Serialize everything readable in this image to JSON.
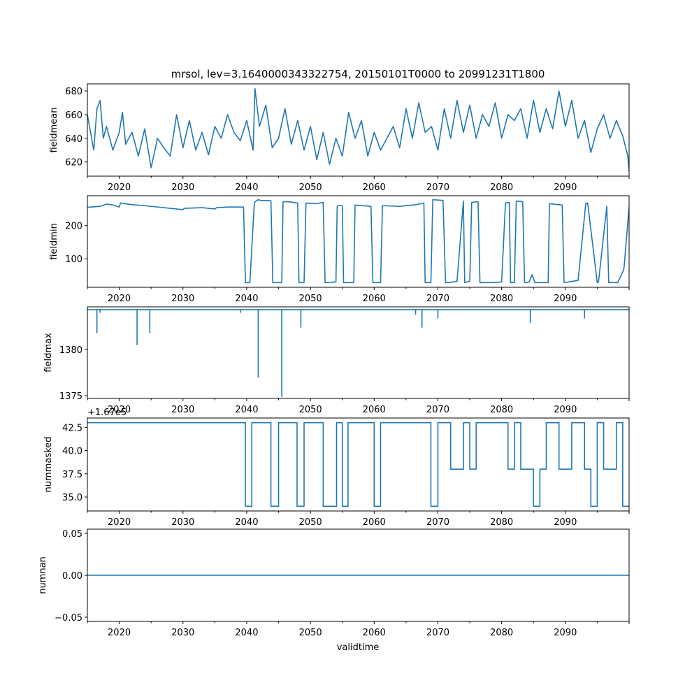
{
  "chart_data": [
    {
      "type": "line",
      "name": "fieldmean",
      "title": "mrsol, lev=3.1640000343322754, 20150101T0000 to 20991231T1800",
      "xlabel": "",
      "ylabel": "fieldmean",
      "xlim": [
        2015,
        2100
      ],
      "ylim": [
        608,
        686
      ],
      "yticks": [
        620,
        640,
        660,
        680
      ],
      "ytick_labels": [
        "620",
        "640",
        "660",
        "680"
      ],
      "xticks": [
        2020,
        2030,
        2040,
        2050,
        2060,
        2070,
        2080,
        2090
      ],
      "xtick_labels": [
        "2020",
        "2030",
        "2040",
        "2050",
        "2060",
        "2070",
        "2080",
        "2090"
      ],
      "x": [
        2015,
        2016,
        2016.5,
        2017,
        2017.5,
        2018,
        2019,
        2020,
        2020.5,
        2021,
        2022,
        2023,
        2024,
        2025,
        2026,
        2027,
        2028,
        2029,
        2030,
        2031,
        2032,
        2033,
        2034,
        2035,
        2036,
        2037,
        2038,
        2039,
        2040,
        2041,
        2041.3,
        2042,
        2043,
        2044,
        2045,
        2046,
        2047,
        2048,
        2049,
        2050,
        2051,
        2052,
        2053,
        2054,
        2055,
        2056,
        2057,
        2058,
        2059,
        2060,
        2061,
        2062,
        2063,
        2064,
        2065,
        2066,
        2067,
        2068,
        2069,
        2070,
        2071,
        2072,
        2073,
        2074,
        2075,
        2076,
        2077,
        2078,
        2079,
        2080,
        2081,
        2082,
        2083,
        2084,
        2085,
        2086,
        2087,
        2088,
        2089,
        2090,
        2091,
        2092,
        2093,
        2094,
        2095,
        2096,
        2097,
        2098,
        2099,
        2099.8,
        2100
      ],
      "values": [
        660,
        630,
        665,
        672,
        640,
        650,
        630,
        645,
        662,
        635,
        645,
        625,
        648,
        615,
        640,
        632,
        625,
        660,
        632,
        655,
        630,
        645,
        626,
        650,
        640,
        660,
        645,
        638,
        655,
        630,
        682,
        650,
        668,
        632,
        640,
        665,
        635,
        655,
        630,
        650,
        622,
        645,
        618,
        640,
        625,
        662,
        640,
        655,
        625,
        645,
        630,
        640,
        650,
        632,
        665,
        640,
        670,
        645,
        650,
        630,
        665,
        640,
        672,
        645,
        668,
        640,
        660,
        650,
        670,
        640,
        660,
        655,
        665,
        640,
        672,
        645,
        665,
        648,
        680,
        650,
        672,
        640,
        655,
        628,
        648,
        660,
        640,
        655,
        642,
        625,
        612
      ]
    },
    {
      "type": "line",
      "name": "fieldmin",
      "xlabel": "",
      "ylabel": "fieldmin",
      "xlim": [
        2015,
        2100
      ],
      "ylim": [
        14,
        290
      ],
      "yticks": [
        100,
        200
      ],
      "ytick_labels": [
        "100",
        "200"
      ],
      "xticks": [
        2020,
        2030,
        2040,
        2050,
        2060,
        2070,
        2080,
        2090
      ],
      "xtick_labels": [
        "2020",
        "2030",
        "2040",
        "2050",
        "2060",
        "2070",
        "2080",
        "2090"
      ],
      "x": [
        2015,
        2017,
        2018,
        2019,
        2020,
        2020.2,
        2022,
        2024,
        2026,
        2028,
        2030,
        2030.2,
        2033,
        2035,
        2035.3,
        2037,
        2039.5,
        2039.8,
        2040.5,
        2041.2,
        2041.8,
        2042.2,
        2043.8,
        2044.1,
        2044.3,
        2045.5,
        2045.7,
        2046.5,
        2048,
        2048.2,
        2049,
        2049.3,
        2051,
        2052,
        2052.3,
        2054,
        2054.2,
        2055,
        2055.2,
        2056.8,
        2057,
        2059.5,
        2059.8,
        2061,
        2061.3,
        2064,
        2066,
        2066.3,
        2067.8,
        2068,
        2068.9,
        2069.2,
        2070.8,
        2071.2,
        2071.6,
        2073,
        2074,
        2074.2,
        2075,
        2075.3,
        2076.3,
        2076.6,
        2078,
        2080,
        2080.6,
        2081.2,
        2081.4,
        2082,
        2082.3,
        2083.3,
        2083.6,
        2084.3,
        2084.8,
        2085.2,
        2087.3,
        2087.5,
        2089.5,
        2089.8,
        2092,
        2093.2,
        2093.5,
        2095,
        2095.2,
        2096.5,
        2096.8,
        2098,
        2098.2,
        2099,
        2099.2,
        2100
      ],
      "values": [
        255,
        258,
        265,
        262,
        256,
        268,
        263,
        260,
        256,
        252,
        248,
        252,
        254,
        250,
        254,
        256,
        256,
        28,
        28,
        270,
        278,
        276,
        275,
        28,
        28,
        28,
        272,
        272,
        268,
        28,
        28,
        268,
        266,
        270,
        28,
        30,
        260,
        260,
        28,
        28,
        262,
        258,
        28,
        28,
        260,
        258,
        262,
        262,
        268,
        28,
        28,
        278,
        276,
        28,
        28,
        32,
        274,
        28,
        32,
        270,
        272,
        28,
        28,
        30,
        268,
        270,
        28,
        28,
        274,
        272,
        28,
        30,
        52,
        28,
        28,
        266,
        262,
        28,
        35,
        266,
        268,
        28,
        30,
        258,
        28,
        28,
        28,
        60,
        72,
        256
      ]
    },
    {
      "type": "line",
      "name": "fieldmax",
      "xlabel": "",
      "ylabel": "fieldmax",
      "xlim": [
        2015,
        2100
      ],
      "ylim": [
        1374.7,
        1384.6
      ],
      "yticks": [
        1375,
        1380
      ],
      "ytick_labels": [
        "1375",
        "1380"
      ],
      "xticks": [
        2020,
        2030,
        2040,
        2050,
        2060,
        2070,
        2080,
        2090
      ],
      "xtick_labels": [
        "2020",
        "2030",
        "2040",
        "2050",
        "2060",
        "2070",
        "2080",
        "2090"
      ],
      "x": [
        2015,
        2016.5,
        2016.5,
        2016.5,
        2017,
        2017,
        2017,
        2022.8,
        2022.8,
        2022.8,
        2024.8,
        2024.8,
        2024.8,
        2039,
        2039,
        2039,
        2041.8,
        2041.8,
        2041.8,
        2045.5,
        2045.5,
        2045.5,
        2048.5,
        2048.5,
        2048.5,
        2066.5,
        2066.5,
        2066.5,
        2067.5,
        2067.5,
        2067.5,
        2070,
        2070,
        2070,
        2084.5,
        2084.5,
        2084.5,
        2093,
        2093,
        2093,
        2100
      ],
      "values": [
        1384.3,
        1384.3,
        1381.8,
        1384.3,
        1384.3,
        1384.0,
        1384.3,
        1384.3,
        1380.5,
        1384.3,
        1384.3,
        1381.8,
        1384.3,
        1384.3,
        1384.0,
        1384.3,
        1384.3,
        1377.0,
        1384.3,
        1384.3,
        1374.9,
        1384.3,
        1384.3,
        1382.4,
        1384.3,
        1384.3,
        1383.8,
        1384.3,
        1384.3,
        1382.4,
        1384.3,
        1384.3,
        1383.4,
        1384.3,
        1384.3,
        1382.9,
        1384.3,
        1384.3,
        1383.4,
        1384.3,
        1384.3
      ]
    },
    {
      "type": "line",
      "name": "nummasked",
      "xlabel": "",
      "ylabel": "nummasked",
      "offset_text": "+1.67e5",
      "xlim": [
        2015,
        2100
      ],
      "ylim": [
        33.5,
        43.5
      ],
      "yticks": [
        35.0,
        37.5,
        40.0,
        42.5
      ],
      "ytick_labels": [
        "35.0",
        "37.5",
        "40.0",
        "42.5"
      ],
      "xticks": [
        2020,
        2030,
        2040,
        2050,
        2060,
        2070,
        2080,
        2090
      ],
      "xtick_labels": [
        "2020",
        "2030",
        "2040",
        "2050",
        "2060",
        "2070",
        "2080",
        "2090"
      ],
      "x": [
        2015,
        2039.8,
        2039.8,
        2040.8,
        2040.8,
        2043.8,
        2043.8,
        2045.0,
        2045.0,
        2047.9,
        2047.9,
        2049.0,
        2049.0,
        2052.0,
        2052.0,
        2054.1,
        2054.1,
        2055.0,
        2055.0,
        2055.9,
        2055.9,
        2060.0,
        2060.0,
        2061.0,
        2061.0,
        2068.9,
        2068.9,
        2070.0,
        2070.0,
        2072.0,
        2072.0,
        2074.0,
        2074.0,
        2075.0,
        2075.0,
        2076.0,
        2076.0,
        2081.0,
        2081.0,
        2082.0,
        2082.0,
        2083.0,
        2083.0,
        2085.0,
        2085.0,
        2086.0,
        2086.0,
        2087.0,
        2087.0,
        2089.0,
        2089.0,
        2091.0,
        2091.0,
        2093.0,
        2093.0,
        2094.0,
        2094.0,
        2095.0,
        2095.0,
        2096.0,
        2096.0,
        2098.0,
        2098.0,
        2099.0,
        2099.0,
        2100
      ],
      "values": [
        43,
        43,
        34,
        34,
        43,
        43,
        34,
        34,
        43,
        43,
        34,
        34,
        43,
        43,
        34,
        34,
        43,
        43,
        34,
        34,
        43,
        43,
        34,
        34,
        43,
        43,
        34,
        34,
        43,
        43,
        38,
        38,
        43,
        43,
        38,
        38,
        43,
        43,
        38,
        38,
        43,
        43,
        38,
        38,
        34,
        34,
        38,
        38,
        43,
        43,
        38,
        38,
        43,
        43,
        38,
        38,
        34,
        34,
        43,
        43,
        38,
        38,
        43,
        43,
        34,
        34
      ]
    },
    {
      "type": "line",
      "name": "numnan",
      "xlabel": "validtime",
      "ylabel": "numnan",
      "xlim": [
        2015,
        2100
      ],
      "ylim": [
        -0.055,
        0.055
      ],
      "yticks": [
        -0.05,
        0.0,
        0.05
      ],
      "ytick_labels": [
        "−0.05",
        "0.00",
        "0.05"
      ],
      "xticks": [
        2020,
        2030,
        2040,
        2050,
        2060,
        2070,
        2080,
        2090
      ],
      "xtick_labels": [
        "2020",
        "2030",
        "2040",
        "2050",
        "2060",
        "2070",
        "2080",
        "2090"
      ],
      "x": [
        2015,
        2100
      ],
      "values": [
        0,
        0
      ]
    }
  ],
  "style": {
    "line_color": "#1f77b4"
  }
}
